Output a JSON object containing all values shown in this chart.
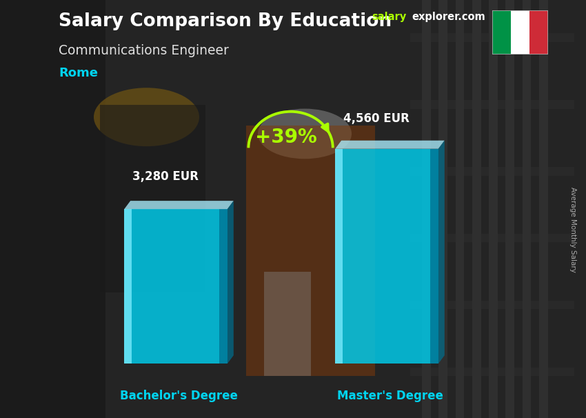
{
  "title": "Salary Comparison By Education",
  "subtitle": "Communications Engineer",
  "location": "Rome",
  "ylabel": "Average Monthly Salary",
  "watermark_salary": "salary",
  "watermark_rest": "explorer.com",
  "categories": [
    "Bachelor's Degree",
    "Master's Degree"
  ],
  "values": [
    3280,
    4560
  ],
  "value_labels": [
    "3,280 EUR",
    "4,560 EUR"
  ],
  "pct_change": "+39%",
  "bg_color": "#3a3a3a",
  "title_color": "#ffffff",
  "subtitle_color": "#e0e0e0",
  "location_color": "#00d4f0",
  "value_label_color": "#ffffff",
  "category_label_color": "#00d4f0",
  "pct_color": "#aaff00",
  "arrow_color": "#aaff00",
  "watermark_color1": "#aaff00",
  "watermark_color2": "#ffffff",
  "bar_face_color": "#00cfef",
  "bar_left_color": "#80eeff",
  "bar_right_color": "#007090",
  "bar_top_color": "#aaeeff",
  "bar_alpha": 0.82,
  "fig_width": 8.5,
  "fig_height": 6.06,
  "ylim_max": 5500,
  "flag_green": "#009246",
  "flag_white": "#ffffff",
  "flag_red": "#ce2b37"
}
